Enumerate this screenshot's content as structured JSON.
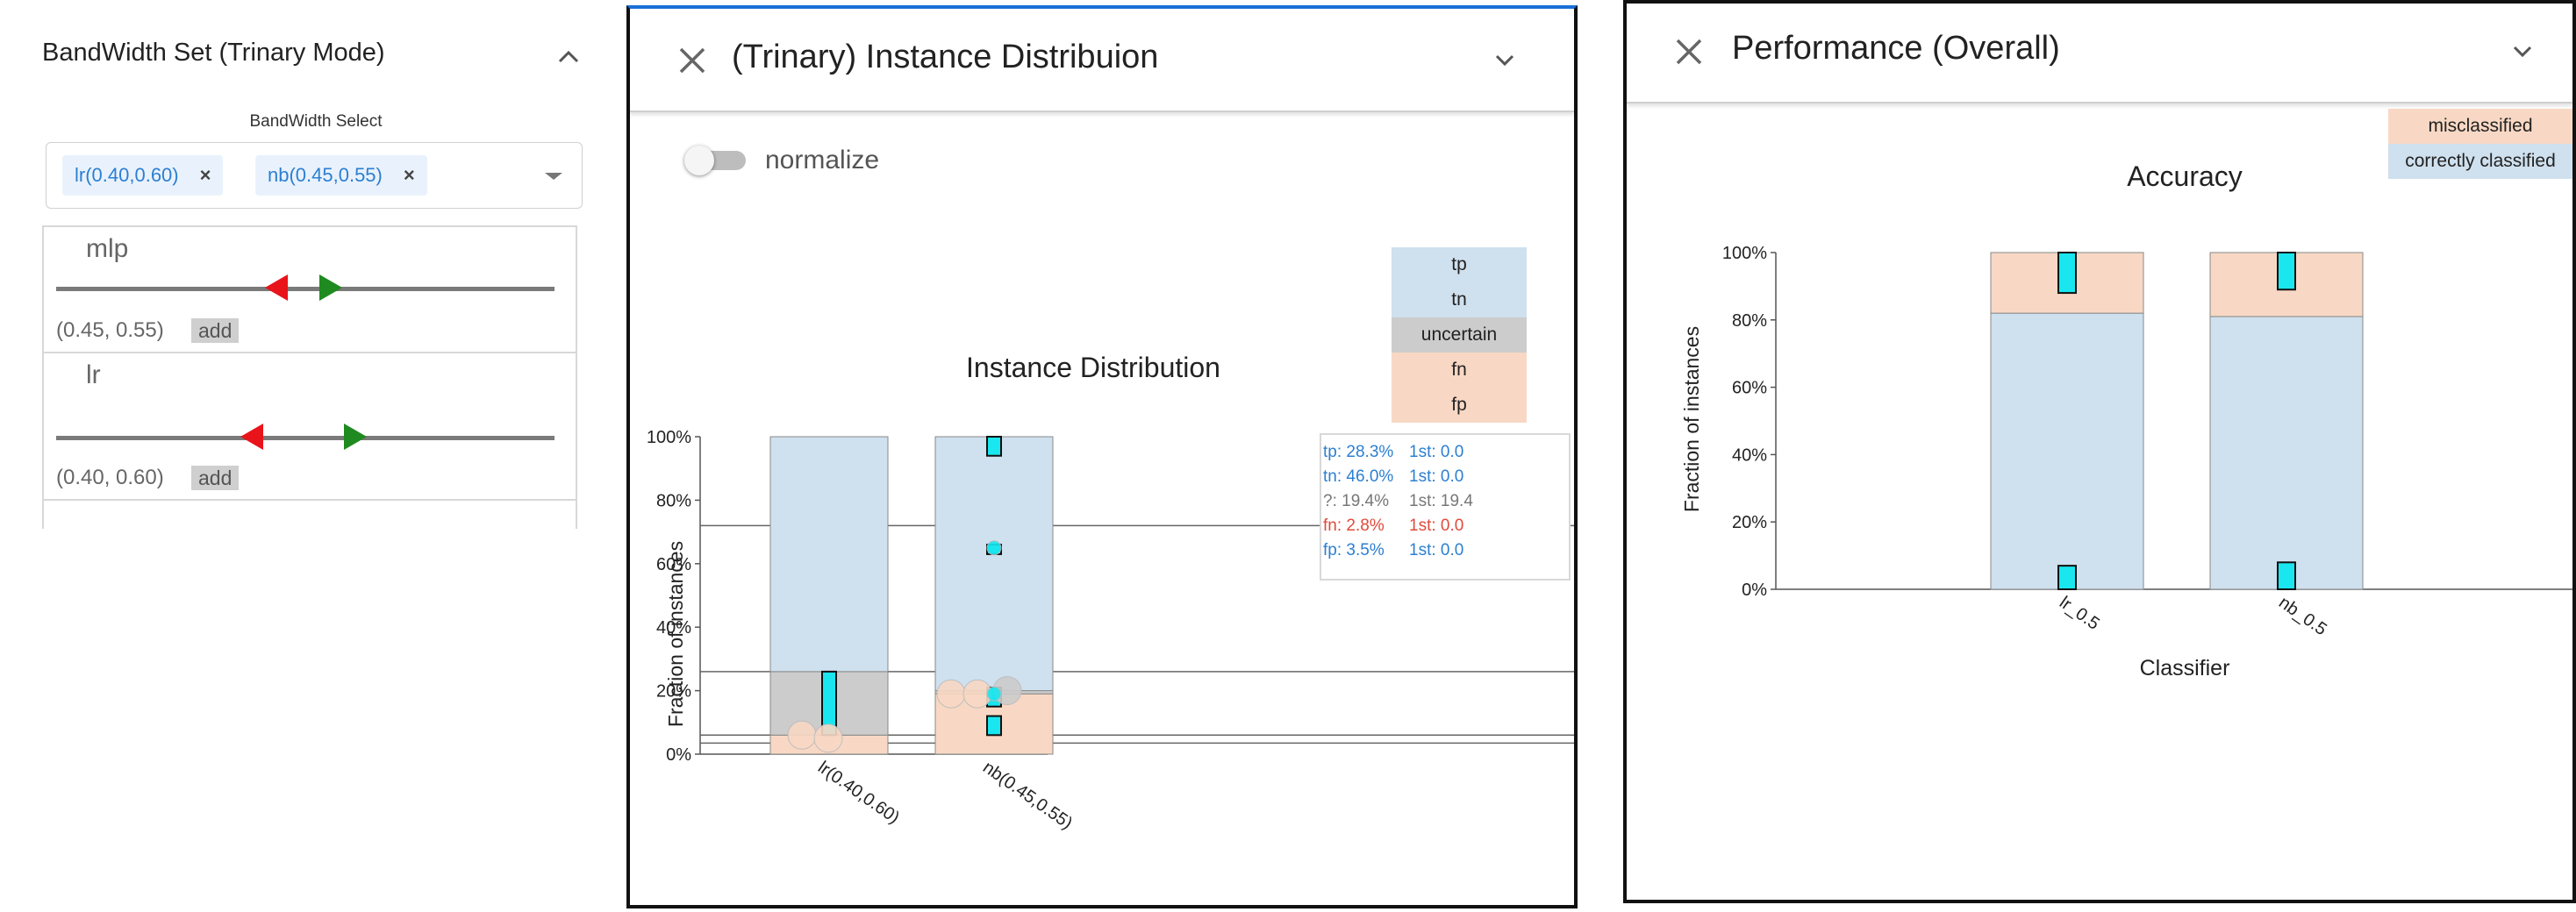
{
  "left_panel": {
    "title": "BandWidth Set (Trinary Mode)",
    "select_label": "BandWidth Select",
    "chips": [
      {
        "label": "lr(0.40,0.60)",
        "remove": "×"
      },
      {
        "label": "nb(0.45,0.55)",
        "remove": "×"
      }
    ],
    "sliders": [
      {
        "name": "mlp",
        "range": "(0.45, 0.55)",
        "add_label": "add",
        "low": 0.45,
        "high": 0.55
      },
      {
        "name": "lr",
        "range": "(0.40, 0.60)",
        "add_label": "add",
        "low": 0.4,
        "high": 0.6
      }
    ],
    "colors": {
      "low_marker": "#e8141a",
      "high_marker": "#1f8a1f",
      "chip_text": "#2c7fd1"
    }
  },
  "instance_window": {
    "title": "(Trinary) Instance Distribuion",
    "toggle_label": "normalize",
    "toggle_on": false,
    "legend": [
      {
        "label": "tp",
        "color": "#cfe0ee"
      },
      {
        "label": "tn",
        "color": "#cfe0ee"
      },
      {
        "label": "uncertain",
        "color": "#cccccc"
      },
      {
        "label": "fn",
        "color": "#f8d8c4"
      },
      {
        "label": "fp",
        "color": "#f8d8c4"
      }
    ],
    "stats": [
      {
        "left": "tp: 28.3%",
        "right": "1st: 0.0",
        "color": "#2c7fd1"
      },
      {
        "left": "tn: 46.0%",
        "right": "1st: 0.0",
        "color": "#2c7fd1"
      },
      {
        "left": "?: 19.4%",
        "right": "1st: 19.4",
        "color": "#777777"
      },
      {
        "left": "fn: 2.8%",
        "right": "1st: 0.0",
        "color": "#e04a3a"
      },
      {
        "left": "fp: 3.5%",
        "right": "1st: 0.0",
        "color": "#2c7fd1"
      }
    ]
  },
  "performance_window": {
    "title": "Performance (Overall)",
    "legend": [
      {
        "label": "misclassified",
        "color": "#f8d8c4"
      },
      {
        "label": "correctly classified",
        "color": "#cfe0ee"
      }
    ]
  },
  "chart_data": [
    {
      "type": "bar",
      "title": "Instance Distribution",
      "ylabel": "Fraction of instances",
      "xlabel": "",
      "ylim": [
        0,
        100
      ],
      "yticks": [
        "0%",
        "20%",
        "40%",
        "60%",
        "80%",
        "100%"
      ],
      "categories": [
        "lr(0.40,0.60)",
        "nb(0.45,0.55)"
      ],
      "series": [
        {
          "name": "fn/fp",
          "values": [
            6,
            19
          ]
        },
        {
          "name": "uncertain",
          "values": [
            20,
            1
          ]
        },
        {
          "name": "tp/tn",
          "values": [
            74,
            80
          ]
        }
      ],
      "reference_lines_y": [
        72,
        26,
        6,
        3.5
      ],
      "highlight_marks": [
        {
          "category": "lr(0.40,0.60)",
          "from": 6,
          "to": 26
        },
        {
          "category": "nb(0.45,0.55)",
          "from": 94,
          "to": 100
        },
        {
          "category": "nb(0.45,0.55)",
          "from": 63,
          "to": 66
        },
        {
          "category": "nb(0.45,0.55)",
          "from": 15,
          "to": 21
        },
        {
          "category": "nb(0.45,0.55)",
          "from": 6,
          "to": 12
        }
      ]
    },
    {
      "type": "bar",
      "title": "Accuracy",
      "ylabel": "Fraction of instances",
      "xlabel": "Classifier",
      "ylim": [
        0,
        100
      ],
      "yticks": [
        "0%",
        "20%",
        "40%",
        "60%",
        "80%",
        "100%"
      ],
      "categories": [
        "lr_0.5",
        "nb_0.5"
      ],
      "series": [
        {
          "name": "correctly classified",
          "values": [
            82,
            81
          ]
        },
        {
          "name": "misclassified",
          "values": [
            18,
            19
          ]
        }
      ],
      "highlight_marks": [
        {
          "category": "lr_0.5",
          "from": 88,
          "to": 100
        },
        {
          "category": "lr_0.5",
          "from": 0,
          "to": 7
        },
        {
          "category": "nb_0.5",
          "from": 89,
          "to": 100
        },
        {
          "category": "nb_0.5",
          "from": 0,
          "to": 8
        }
      ]
    }
  ]
}
